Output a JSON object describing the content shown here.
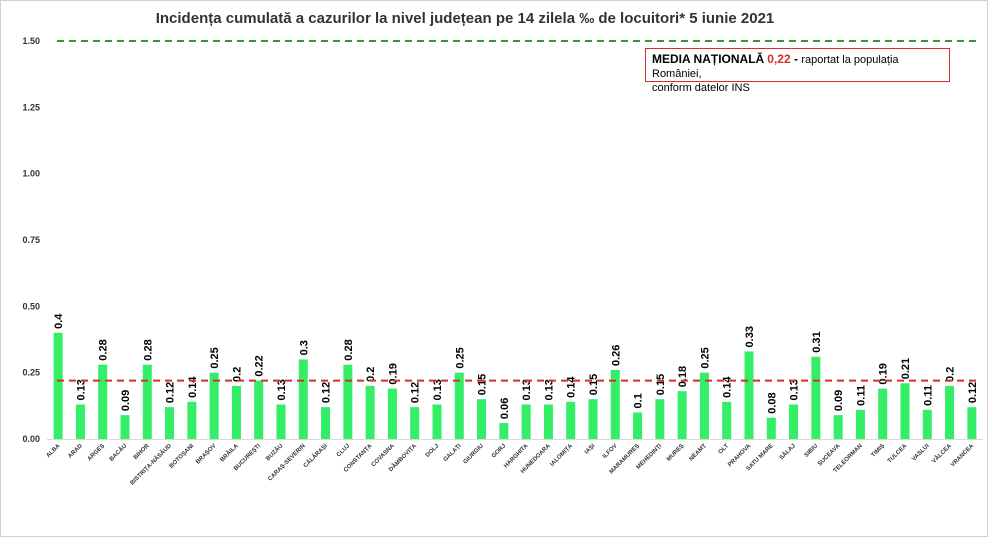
{
  "chart_data": {
    "type": "bar",
    "title": "Incidența cumulată a cazurilor la nivel județean pe 14 zilela ‰ de locuitori*  5 iunie 2021",
    "categories": [
      "ALBA",
      "ARAD",
      "ARGEȘ",
      "BACĂU",
      "BIHOR",
      "BISTRIȚA-NĂSĂUD",
      "BOTOȘANI",
      "BRAȘOV",
      "BRĂILA",
      "BUCUREȘTI",
      "BUZĂU",
      "CARAȘ-SEVERIN",
      "CĂLĂRAȘI",
      "CLUJ",
      "CONSTANȚA",
      "COVASNA",
      "DÂMBOVIȚA",
      "DOLJ",
      "GALAȚI",
      "GIURGIU",
      "GORJ",
      "HARGHITA",
      "HUNEDOARA",
      "IALOMIȚA",
      "IAȘI",
      "ILFOV",
      "MARAMUREȘ",
      "MEHEDINȚI",
      "MUREȘ",
      "NEAMȚ",
      "OLT",
      "PRAHOVA",
      "SATU MARE",
      "SĂLAJ",
      "SIBIU",
      "SUCEAVA",
      "TELEORMAN",
      "TIMIȘ",
      "TULCEA",
      "VASLUI",
      "VÂLCEA",
      "VRANCEA"
    ],
    "values": [
      0.4,
      0.13,
      0.28,
      0.09,
      0.28,
      0.12,
      0.14,
      0.25,
      0.2,
      0.22,
      0.13,
      0.3,
      0.12,
      0.28,
      0.2,
      0.19,
      0.12,
      0.13,
      0.25,
      0.15,
      0.06,
      0.13,
      0.13,
      0.14,
      0.15,
      0.26,
      0.1,
      0.15,
      0.18,
      0.25,
      0.14,
      0.33,
      0.08,
      0.13,
      0.31,
      0.09,
      0.11,
      0.19,
      0.21,
      0.11,
      0.2,
      0.12
    ],
    "value_labels": [
      "0.4",
      "0.13",
      "0.28",
      "0.09",
      "0.28",
      "0.12",
      "0.14",
      "0.25",
      "0.2",
      "0.22",
      "0.13",
      "0.3",
      "0.12",
      "0.28",
      "0.2",
      "0.19",
      "0.12",
      "0.13",
      "0.25",
      "0.15",
      "0.06",
      "0.13",
      "0.13",
      "0.14",
      "0.15",
      "0.26",
      "0.1",
      "0.15",
      "0.18",
      "0.25",
      "0.14",
      "0.33",
      "0.08",
      "0.13",
      "0.31",
      "0.09",
      "0.11",
      "0.19",
      "0.21",
      "0.11",
      "0.2",
      "0.12"
    ],
    "y_ticks": [
      "0.00",
      "0.25",
      "0.50",
      "0.75",
      "1.00",
      "1.25",
      "1.50"
    ],
    "ylim": [
      0,
      1.5
    ],
    "reference_lines": [
      {
        "value": 1.5,
        "color": "#2e9e2e",
        "style": "dashed"
      },
      {
        "value": 0.22,
        "color": "#d32f2f",
        "style": "dashed"
      }
    ],
    "bar_color": "#33ee66",
    "grid": false,
    "legend": "none"
  },
  "annotation": {
    "label": "MEDIA NAȚIONALĂ",
    "value": "0,22",
    "separator": " - ",
    "text_line1": "raportat la populația României,",
    "text_line2": "conform datelor INS"
  }
}
